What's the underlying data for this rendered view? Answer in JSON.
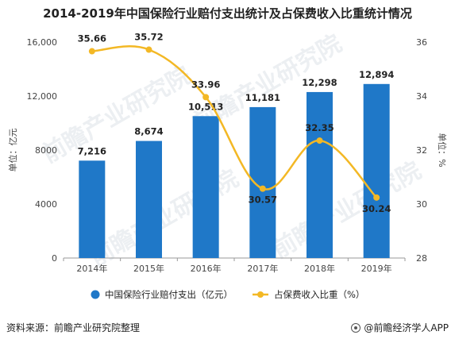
{
  "title": "2014-2019年中国保险行业赔付支出统计及占保费收入比重统计情况",
  "source": "资料来源：前瞻产业研究院整理",
  "credit": "@前瞻经济学人APP",
  "watermark": "前瞻产业研究院",
  "colors": {
    "bar": "#1F78C8",
    "line": "#F3B825",
    "axis": "#999999",
    "text": "#333333"
  },
  "chart_data": {
    "type": "bar",
    "categories": [
      "2014年",
      "2015年",
      "2016年",
      "2017年",
      "2018年",
      "2019年"
    ],
    "series": [
      {
        "name": "中国保险行业赔付支出（亿元）",
        "type": "bar",
        "axis": "left",
        "values": [
          7216,
          8674,
          10513,
          11181,
          12298,
          12894
        ],
        "labels": [
          "7,216",
          "8,674",
          "10,513",
          "11,181",
          "12,298",
          "12,894"
        ]
      },
      {
        "name": "占保费收入比重（%）",
        "type": "line",
        "axis": "right",
        "values": [
          35.66,
          35.72,
          33.96,
          30.57,
          32.35,
          30.24
        ],
        "labels": [
          "35.66",
          "35.72",
          "33.96",
          "30.57",
          "32.35",
          "30.24"
        ]
      }
    ],
    "ylabel_left": "单位：亿元",
    "ylabel_right": "单位：%",
    "ylim_left": [
      0,
      16000
    ],
    "ylim_right": [
      28,
      36
    ],
    "yticks_left": [
      "0",
      "4000",
      "8000",
      "12,000",
      "16,000"
    ],
    "yticks_right": [
      "28",
      "30",
      "32",
      "34",
      "36"
    ],
    "legend_position": "bottom"
  }
}
